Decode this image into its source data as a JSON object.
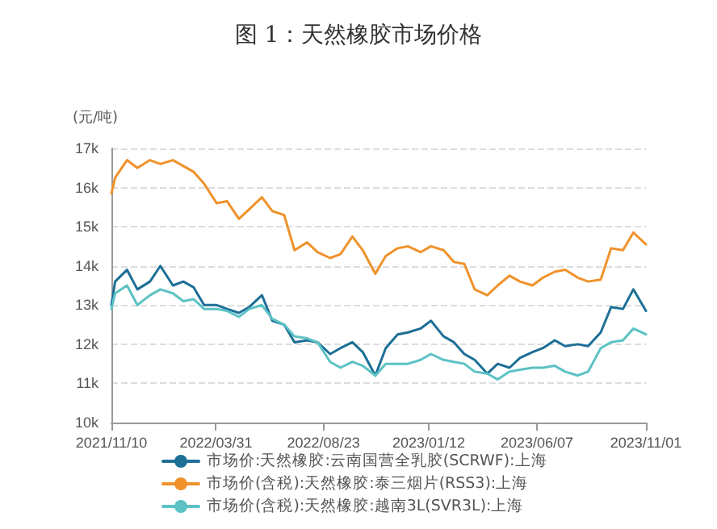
{
  "chart_data": {
    "type": "line",
    "title": "图 1：天然橡胶市场价格",
    "ylabel": "(元/吨)",
    "x": [
      "2021-11-10",
      "2021-11-15",
      "2021-12-01",
      "2021-12-15",
      "2022-01-01",
      "2022-01-15",
      "2022-02-01",
      "2022-02-15",
      "2022-03-01",
      "2022-03-15",
      "2022-04-01",
      "2022-04-15",
      "2022-05-01",
      "2022-05-15",
      "2022-06-01",
      "2022-06-15",
      "2022-07-01",
      "2022-07-15",
      "2022-08-01",
      "2022-08-15",
      "2022-09-01",
      "2022-09-15",
      "2022-10-01",
      "2022-10-15",
      "2022-11-01",
      "2022-11-15",
      "2022-12-01",
      "2022-12-15",
      "2023-01-01",
      "2023-01-15",
      "2023-02-01",
      "2023-02-15",
      "2023-03-01",
      "2023-03-15",
      "2023-04-01",
      "2023-04-15",
      "2023-05-01",
      "2023-05-15",
      "2023-06-01",
      "2023-06-15",
      "2023-07-01",
      "2023-07-15",
      "2023-08-01",
      "2023-08-15",
      "2023-09-01",
      "2023-09-15",
      "2023-10-01",
      "2023-10-15",
      "2023-11-01"
    ],
    "series": [
      {
        "name": "市场价:天然橡胶:云南国营全乳胶(SCRWF):上海",
        "color": "#1d6f96",
        "values": [
          13000,
          13600,
          13900,
          13400,
          13600,
          14000,
          13500,
          13600,
          13450,
          13000,
          13000,
          12900,
          12800,
          12950,
          13250,
          12600,
          12500,
          12050,
          12100,
          12050,
          11750,
          11900,
          12050,
          11800,
          11200,
          11900,
          12250,
          12300,
          12400,
          12600,
          12200,
          12050,
          11750,
          11600,
          11250,
          11500,
          11400,
          11650,
          11800,
          11900,
          12100,
          11950,
          12000,
          11950,
          12300,
          12950,
          12900,
          13400,
          12850
        ]
      },
      {
        "name": "市场价(含税):天然橡胶:泰三烟片(RSS3):上海",
        "color": "#f0922b",
        "values": [
          15850,
          16250,
          16700,
          16500,
          16700,
          16600,
          16700,
          16550,
          16400,
          16100,
          15600,
          15650,
          15200,
          15450,
          15750,
          15400,
          15300,
          14400,
          14600,
          14350,
          14200,
          14300,
          14750,
          14400,
          13800,
          14250,
          14450,
          14500,
          14350,
          14500,
          14400,
          14100,
          14050,
          13400,
          13250,
          13500,
          13750,
          13600,
          13500,
          13700,
          13850,
          13900,
          13700,
          13600,
          13650,
          14450,
          14400,
          14850,
          14550
        ]
      },
      {
        "name": "市场价(含税):天然橡胶:越南3L(SVR3L):上海",
        "color": "#5cc2c4",
        "values": [
          12900,
          13300,
          13500,
          13000,
          13250,
          13400,
          13300,
          13100,
          13150,
          12900,
          12900,
          12850,
          12700,
          12900,
          13000,
          12650,
          12500,
          12200,
          12150,
          12050,
          11550,
          11400,
          11550,
          11450,
          11200,
          11500,
          11500,
          11500,
          11600,
          11750,
          11600,
          11550,
          11500,
          11300,
          11250,
          11100,
          11300,
          11350,
          11400,
          11400,
          11450,
          11300,
          11200,
          11300,
          11900,
          12050,
          12100,
          12400,
          12250
        ]
      }
    ],
    "xlim": [
      "2021-11-10",
      "2023-11-01"
    ],
    "xticks": [
      {
        "value": "2021-11-10",
        "label": "2021/11/10"
      },
      {
        "value": "2022-03-31",
        "label": "2022/03/31"
      },
      {
        "value": "2022-08-23",
        "label": "2022/08/23"
      },
      {
        "value": "2023-01-12",
        "label": "2023/01/12"
      },
      {
        "value": "2023-06-07",
        "label": "2023/06/07"
      },
      {
        "value": "2023-11-01",
        "label": "2023/11/01"
      }
    ],
    "ylim": [
      10000,
      17000
    ],
    "yticks": [
      {
        "value": 10000,
        "label": "10k"
      },
      {
        "value": 11000,
        "label": "11k"
      },
      {
        "value": 12000,
        "label": "12k"
      },
      {
        "value": 13000,
        "label": "13k"
      },
      {
        "value": 14000,
        "label": "14k"
      },
      {
        "value": 15000,
        "label": "15k"
      },
      {
        "value": 16000,
        "label": "16k"
      },
      {
        "value": 17000,
        "label": "17k"
      }
    ],
    "grid": "y",
    "legend": "bottom",
    "line_style": "solid"
  }
}
